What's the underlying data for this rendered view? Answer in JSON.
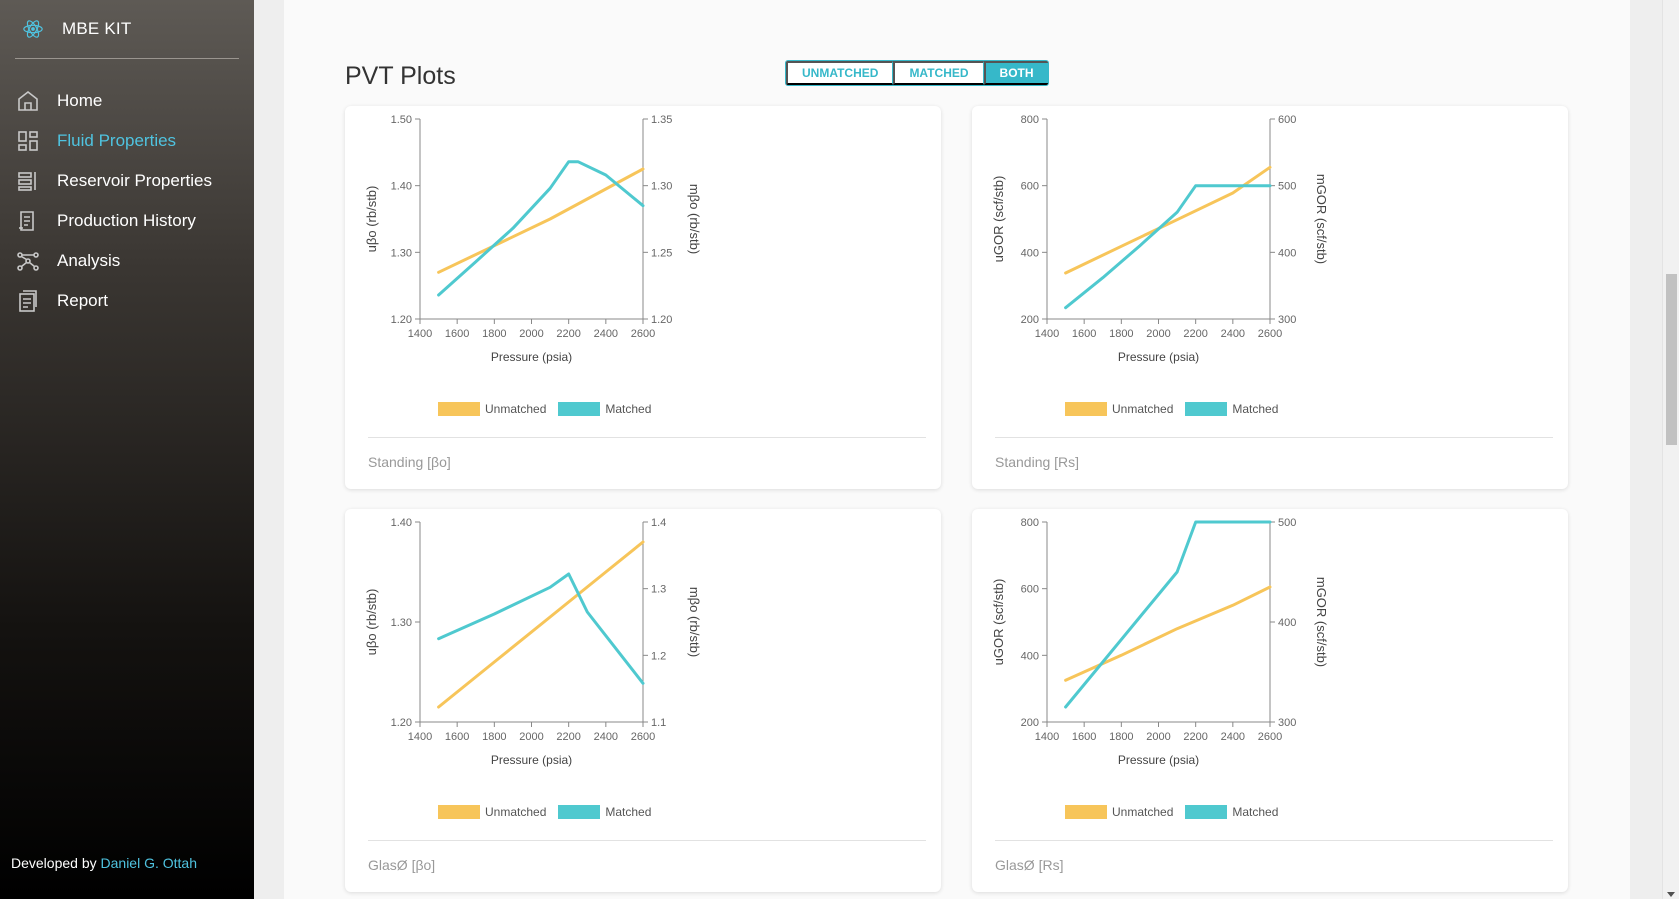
{
  "app": {
    "brand": "MBE KIT",
    "nav": [
      {
        "label": "Home",
        "icon": "home-icon",
        "active": false
      },
      {
        "label": "Fluid Properties",
        "icon": "dashboard-icon",
        "active": true
      },
      {
        "label": "Reservoir Properties",
        "icon": "reservoir-icon",
        "active": false
      },
      {
        "label": "Production History",
        "icon": "history-icon",
        "active": false
      },
      {
        "label": "Analysis",
        "icon": "analysis-icon",
        "active": false
      },
      {
        "label": "Report",
        "icon": "report-icon",
        "active": false
      }
    ],
    "footer_prefix": "Developed by",
    "footer_author": "Daniel G. Ottah"
  },
  "page": {
    "title": "PVT Plots",
    "toggle": [
      "UNMATCHED",
      "MATCHED",
      "BOTH"
    ],
    "toggle_selected": "BOTH"
  },
  "colors": {
    "unmatched": "#f7c55a",
    "matched": "#4fc9cf",
    "accent": "#36b8c9",
    "nav_active": "#4fc3e0"
  },
  "legend": {
    "unmatched": "Unmatched",
    "matched": "Matched"
  },
  "chart_data": [
    {
      "type": "line",
      "caption": "Standing [βo]",
      "xlabel": "Pressure (psia)",
      "ylabel": "uβo (rb/stb)",
      "y2label": "mβo (rb/stb)",
      "xlim": [
        1400,
        2600
      ],
      "xticks": [
        1400,
        1600,
        1800,
        2000,
        2200,
        2400,
        2600
      ],
      "ylim": [
        1.2,
        1.5
      ],
      "yticks": [
        "1.20",
        "1.30",
        "1.40",
        "1.50"
      ],
      "y2lim": [
        1.2,
        1.35
      ],
      "y2ticks": [
        "1.20",
        "1.25",
        "1.30",
        "1.35"
      ],
      "series": [
        {
          "name": "Unmatched",
          "axis": "y",
          "x": [
            1500,
            1800,
            2100,
            2400,
            2600
          ],
          "y": [
            1.27,
            1.31,
            1.35,
            1.395,
            1.425
          ]
        },
        {
          "name": "Matched",
          "axis": "y2",
          "x": [
            1500,
            1700,
            1900,
            2100,
            2200,
            2250,
            2400,
            2600
          ],
          "y": [
            1.218,
            1.243,
            1.268,
            1.298,
            1.318,
            1.318,
            1.308,
            1.285
          ]
        }
      ]
    },
    {
      "type": "line",
      "caption": "Standing [Rs]",
      "xlabel": "Pressure (psia)",
      "ylabel": "uGOR (scf/stb)",
      "y2label": "mGOR (scf/stb)",
      "xlim": [
        1400,
        2600
      ],
      "xticks": [
        1400,
        1600,
        1800,
        2000,
        2200,
        2400,
        2600
      ],
      "ylim": [
        200,
        800
      ],
      "yticks": [
        "200",
        "400",
        "600",
        "800"
      ],
      "y2lim": [
        300,
        600
      ],
      "y2ticks": [
        "300",
        "400",
        "500",
        "600"
      ],
      "series": [
        {
          "name": "Unmatched",
          "axis": "y",
          "x": [
            1500,
            1800,
            2100,
            2400,
            2600
          ],
          "y": [
            338,
            418,
            498,
            578,
            655
          ]
        },
        {
          "name": "Matched",
          "axis": "y2",
          "x": [
            1500,
            1700,
            1900,
            2100,
            2200,
            2250,
            2400,
            2600
          ],
          "y": [
            317,
            362,
            410,
            460,
            500,
            500,
            500,
            500
          ]
        }
      ]
    },
    {
      "type": "line",
      "caption": "GlasØ [βo]",
      "xlabel": "Pressure (psia)",
      "ylabel": "uβo (rb/stb)",
      "y2label": "mβo (rb/stb)",
      "xlim": [
        1400,
        2600
      ],
      "xticks": [
        1400,
        1600,
        1800,
        2000,
        2200,
        2400,
        2600
      ],
      "ylim": [
        1.2,
        1.4
      ],
      "yticks": [
        "1.20",
        "1.30",
        "1.40"
      ],
      "y2lim": [
        1.1,
        1.4
      ],
      "y2ticks": [
        "1.1",
        "1.2",
        "1.3",
        "1.4"
      ],
      "series": [
        {
          "name": "Unmatched",
          "axis": "y",
          "x": [
            1500,
            1800,
            2100,
            2400,
            2600
          ],
          "y": [
            1.215,
            1.26,
            1.305,
            1.35,
            1.38
          ]
        },
        {
          "name": "Matched",
          "axis": "y2",
          "x": [
            1500,
            1800,
            2100,
            2200,
            2300,
            2600
          ],
          "y": [
            1.225,
            1.262,
            1.302,
            1.322,
            1.265,
            1.158
          ]
        }
      ]
    },
    {
      "type": "line",
      "caption": "GlasØ [Rs]",
      "xlabel": "Pressure (psia)",
      "ylabel": "uGOR (scf/stb)",
      "y2label": "mGOR (scf/stb)",
      "xlim": [
        1400,
        2600
      ],
      "xticks": [
        1400,
        1600,
        1800,
        2000,
        2200,
        2400,
        2600
      ],
      "ylim": [
        200,
        800
      ],
      "yticks": [
        "200",
        "400",
        "600",
        "800"
      ],
      "y2lim": [
        300,
        500
      ],
      "y2ticks": [
        "300",
        "400",
        "500"
      ],
      "series": [
        {
          "name": "Unmatched",
          "axis": "y",
          "x": [
            1500,
            1800,
            2100,
            2400,
            2600
          ],
          "y": [
            325,
            400,
            480,
            550,
            605
          ]
        },
        {
          "name": "Matched",
          "axis": "y2",
          "x": [
            1500,
            1700,
            1900,
            2100,
            2200,
            2600
          ],
          "y": [
            315,
            360,
            405,
            450,
            500,
            500
          ]
        }
      ]
    }
  ]
}
